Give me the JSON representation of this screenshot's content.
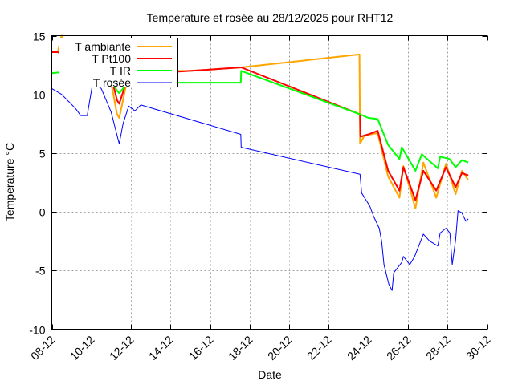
{
  "chart_data": {
    "type": "line",
    "title": "Température et rosée au 28/12/2025 pour RHT12",
    "xlabel": "Date",
    "ylabel": "Temperature °C",
    "x_unit": "day of December 2025",
    "xlim": [
      8,
      30
    ],
    "ylim": [
      -10,
      15
    ],
    "x_ticks": [
      {
        "value": 8,
        "label": "08-12"
      },
      {
        "value": 10,
        "label": "10-12"
      },
      {
        "value": 12,
        "label": "12-12"
      },
      {
        "value": 14,
        "label": "14-12"
      },
      {
        "value": 16,
        "label": "16-12"
      },
      {
        "value": 18,
        "label": "18-12"
      },
      {
        "value": 20,
        "label": "20-12"
      },
      {
        "value": 22,
        "label": "22-12"
      },
      {
        "value": 24,
        "label": "24-12"
      },
      {
        "value": 26,
        "label": "26-12"
      },
      {
        "value": 28,
        "label": "28-12"
      },
      {
        "value": 30,
        "label": "30-12"
      }
    ],
    "y_ticks": [
      {
        "value": 15,
        "label": "15"
      },
      {
        "value": 10,
        "label": "10"
      },
      {
        "value": 5,
        "label": "5"
      },
      {
        "value": 0,
        "label": "0"
      },
      {
        "value": -5,
        "label": "-5"
      },
      {
        "value": -10,
        "label": "-10"
      }
    ],
    "grid": true,
    "legend_position": "top-left",
    "series": [
      {
        "name": "T ambiante",
        "color": "#ffa500",
        "width": 2,
        "points": [
          [
            8.0,
            13.6
          ],
          [
            8.3,
            13.6
          ],
          [
            8.49,
            15.0
          ],
          [
            9.0,
            13.0
          ],
          [
            10.0,
            12.5
          ],
          [
            11.0,
            11.0
          ],
          [
            11.3,
            8.3
          ],
          [
            11.41,
            8.0
          ],
          [
            11.6,
            9.5
          ],
          [
            11.89,
            11.9
          ],
          [
            13,
            12.0
          ],
          [
            15,
            12.0
          ],
          [
            17.57,
            12.3
          ],
          [
            23.55,
            13.4
          ],
          [
            23.58,
            5.8
          ],
          [
            23.8,
            6.5
          ],
          [
            24.47,
            6.7
          ],
          [
            25.0,
            3.0
          ],
          [
            25.57,
            1.2
          ],
          [
            25.77,
            3.9
          ],
          [
            26.38,
            0.3
          ],
          [
            26.78,
            4.2
          ],
          [
            27.43,
            1.2
          ],
          [
            27.92,
            4.1
          ],
          [
            28.41,
            1.5
          ],
          [
            28.73,
            3.5
          ],
          [
            29.05,
            2.7
          ]
        ]
      },
      {
        "name": "T Pt100",
        "color": "#ff0000",
        "width": 2,
        "points": [
          [
            8.0,
            13.6
          ],
          [
            8.3,
            13.6
          ],
          [
            9.0,
            13.0
          ],
          [
            10.0,
            12.5
          ],
          [
            11.0,
            11.5
          ],
          [
            11.3,
            9.5
          ],
          [
            11.41,
            9.2
          ],
          [
            11.6,
            10.2
          ],
          [
            11.89,
            11.8
          ],
          [
            13,
            11.8
          ],
          [
            15,
            12.0
          ],
          [
            17.57,
            12.3
          ],
          [
            23.58,
            8.3
          ],
          [
            23.6,
            6.4
          ],
          [
            24.0,
            6.6
          ],
          [
            24.47,
            6.9
          ],
          [
            25.0,
            3.5
          ],
          [
            25.57,
            1.8
          ],
          [
            25.77,
            3.8
          ],
          [
            26.38,
            1.0
          ],
          [
            26.78,
            3.5
          ],
          [
            27.43,
            1.8
          ],
          [
            27.92,
            3.8
          ],
          [
            28.41,
            2.1
          ],
          [
            28.73,
            3.3
          ],
          [
            29.05,
            3.1
          ]
        ]
      },
      {
        "name": "T IR",
        "color": "#00ff00",
        "width": 2,
        "points": [
          [
            8.0,
            11.8
          ],
          [
            8.5,
            11.9
          ],
          [
            9.0,
            12.0
          ],
          [
            10.0,
            11.8
          ],
          [
            11.0,
            11.2
          ],
          [
            11.3,
            10.3
          ],
          [
            11.41,
            10.1
          ],
          [
            11.6,
            10.5
          ],
          [
            11.89,
            11.0
          ],
          [
            13,
            11.0
          ],
          [
            15,
            11.0
          ],
          [
            17.55,
            11.0
          ],
          [
            17.57,
            12.0
          ],
          [
            23.58,
            8.3
          ],
          [
            24.0,
            8.0
          ],
          [
            24.47,
            7.9
          ],
          [
            25.0,
            5.7
          ],
          [
            25.57,
            4.5
          ],
          [
            25.69,
            5.5
          ],
          [
            26.38,
            3.5
          ],
          [
            26.7,
            4.9
          ],
          [
            27.51,
            3.7
          ],
          [
            27.63,
            4.7
          ],
          [
            28.1,
            4.5
          ],
          [
            28.41,
            3.8
          ],
          [
            28.73,
            4.4
          ],
          [
            29.05,
            4.2
          ]
        ]
      },
      {
        "name": "T rosée",
        "color": "#0000ff",
        "width": 1,
        "points": [
          [
            8.0,
            10.5
          ],
          [
            8.5,
            10.0
          ],
          [
            9.2,
            8.8
          ],
          [
            9.46,
            8.2
          ],
          [
            9.79,
            8.2
          ],
          [
            10.07,
            11.0
          ],
          [
            10.5,
            10.5
          ],
          [
            11.0,
            8.5
          ],
          [
            11.3,
            6.5
          ],
          [
            11.41,
            5.8
          ],
          [
            11.6,
            7.5
          ],
          [
            11.89,
            9.0
          ],
          [
            12.2,
            8.6
          ],
          [
            12.5,
            9.1
          ],
          [
            17.55,
            6.6
          ],
          [
            17.57,
            5.5
          ],
          [
            23.58,
            3.2
          ],
          [
            23.66,
            1.6
          ],
          [
            24.07,
            0.5
          ],
          [
            24.27,
            -0.4
          ],
          [
            24.55,
            -1.4
          ],
          [
            24.67,
            -2.5
          ],
          [
            24.79,
            -4.5
          ],
          [
            25.04,
            -6.2
          ],
          [
            25.2,
            -6.7
          ],
          [
            25.28,
            -5.2
          ],
          [
            25.69,
            -4.3
          ],
          [
            25.77,
            -3.8
          ],
          [
            26.09,
            -4.5
          ],
          [
            26.34,
            -3.8
          ],
          [
            26.78,
            -1.9
          ],
          [
            27.1,
            -2.5
          ],
          [
            27.51,
            -2.9
          ],
          [
            27.63,
            -1.8
          ],
          [
            27.92,
            -1.4
          ],
          [
            28.12,
            -1.8
          ],
          [
            28.24,
            -4.5
          ],
          [
            28.41,
            -2.4
          ],
          [
            28.53,
            0.1
          ],
          [
            28.73,
            -0.1
          ],
          [
            28.93,
            -0.8
          ],
          [
            29.05,
            -0.6
          ]
        ]
      }
    ]
  }
}
